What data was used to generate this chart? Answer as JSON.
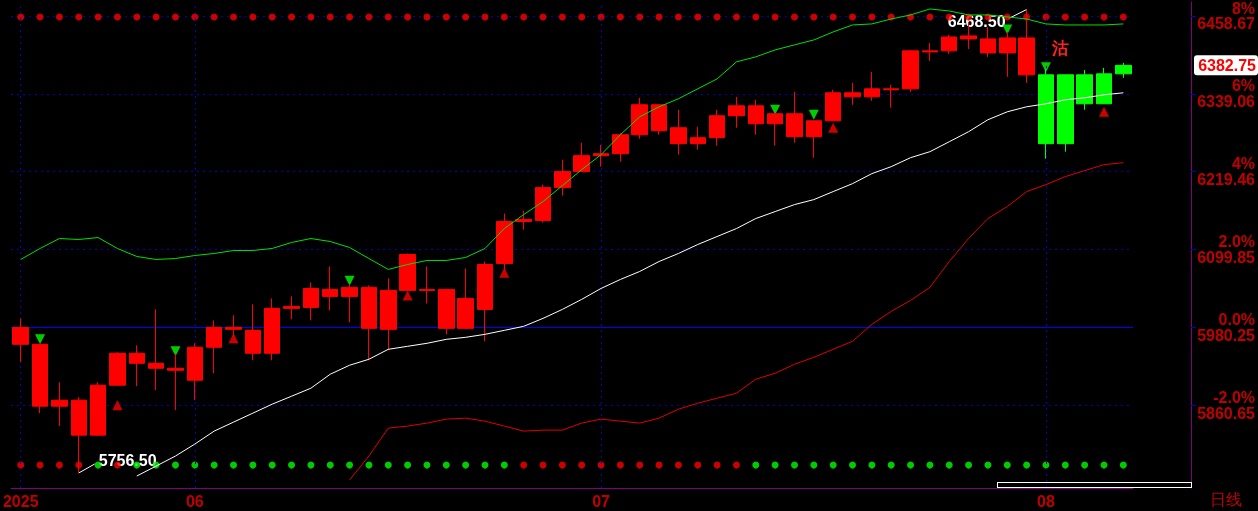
{
  "chart_data": {
    "type": "candlestick",
    "categories": [
      "2025",
      null,
      null,
      null,
      null,
      null,
      null,
      null,
      null,
      "06",
      null,
      null,
      null,
      null,
      null,
      null,
      null,
      null,
      null,
      null,
      null,
      null,
      null,
      null,
      null,
      null,
      null,
      null,
      null,
      null,
      "07",
      null,
      null,
      null,
      null,
      null,
      null,
      null,
      null,
      null,
      null,
      null,
      null,
      null,
      null,
      null,
      null,
      null,
      null,
      null,
      null,
      null,
      null,
      "08",
      null,
      null,
      null,
      null
    ],
    "ohlc": [
      [
        5954.2,
        5994.0,
        5926.6,
        5980.2
      ],
      [
        5859.1,
        5954.2,
        5848.4,
        5954.2
      ],
      [
        5859.1,
        5895.9,
        5828.5,
        5868.3
      ],
      [
        5814.6,
        5872.9,
        5756.5,
        5868.3
      ],
      [
        5814.6,
        5895.9,
        5813.1,
        5891.3
      ],
      [
        5891.3,
        5941.9,
        5891.3,
        5940.4
      ],
      [
        5925.0,
        5952.6,
        5889.8,
        5940.4
      ],
      [
        5917.4,
        6007.8,
        5883.7,
        5925.0
      ],
      [
        5914.3,
        5938.8,
        5853.0,
        5917.4
      ],
      [
        5899.0,
        5955.7,
        5868.3,
        5949.6
      ],
      [
        5949.6,
        5991.0,
        5909.7,
        5980.2
      ],
      [
        5977.2,
        5998.7,
        5966.4,
        5980.2
      ],
      [
        5940.4,
        6015.5,
        5929.6,
        5975.6
      ],
      [
        5940.4,
        6024.7,
        5929.6,
        6009.4
      ],
      [
        6009.4,
        6027.8,
        5992.5,
        6012.4
      ],
      [
        6010.9,
        6049.2,
        5991.0,
        6040.0
      ],
      [
        6027.8,
        6073.8,
        6006.3,
        6038.5
      ],
      [
        6027.8,
        6046.2,
        5987.9,
        6041.6
      ],
      [
        5978.7,
        6044.6,
        5929.6,
        6041.6
      ],
      [
        5977.2,
        6055.4,
        5945.0,
        6037.0
      ],
      [
        6037.0,
        6093.7,
        6037.0,
        6092.2
      ],
      [
        6037.0,
        6073.8,
        6017.0,
        6038.5
      ],
      [
        5978.7,
        6038.5,
        5969.5,
        6038.5
      ],
      [
        5978.7,
        6070.7,
        5978.7,
        6024.7
      ],
      [
        6007.8,
        6081.4,
        5958.8,
        6076.8
      ],
      [
        6078.4,
        6155.0,
        6067.6,
        6142.8
      ],
      [
        6142.8,
        6159.6,
        6130.5,
        6145.8
      ],
      [
        6144.3,
        6199.5,
        6141.2,
        6194.9
      ],
      [
        6194.9,
        6237.8,
        6182.6,
        6219.5
      ],
      [
        6219.5,
        6263.9,
        6219.5,
        6244.0
      ],
      [
        6244.0,
        6260.8,
        6227.1,
        6247.0
      ],
      [
        6247.0,
        6279.2,
        6234.8,
        6276.2
      ],
      [
        6276.2,
        6332.9,
        6270.0,
        6322.2
      ],
      [
        6282.3,
        6322.2,
        6276.2,
        6322.2
      ],
      [
        6262.4,
        6314.5,
        6245.5,
        6286.9
      ],
      [
        6262.4,
        6288.4,
        6253.2,
        6271.6
      ],
      [
        6271.6,
        6314.5,
        6259.3,
        6305.3
      ],
      [
        6305.3,
        6334.4,
        6286.9,
        6320.6
      ],
      [
        6293.0,
        6329.8,
        6276.2,
        6320.6
      ],
      [
        6293.0,
        6308.4,
        6259.3,
        6308.4
      ],
      [
        6273.1,
        6342.1,
        6263.9,
        6308.4
      ],
      [
        6273.1,
        6297.6,
        6240.9,
        6297.6
      ],
      [
        6297.6,
        6345.2,
        6297.6,
        6340.6
      ],
      [
        6334.4,
        6355.9,
        6322.2,
        6340.6
      ],
      [
        6334.4,
        6372.8,
        6328.3,
        6346.7
      ],
      [
        6345.2,
        6352.8,
        6317.6,
        6346.7
      ],
      [
        6346.7,
        6406.5,
        6342.1,
        6405.0
      ],
      [
        6403.4,
        6417.2,
        6389.6,
        6405.0
      ],
      [
        6405.0,
        6429.5,
        6400.4,
        6426.4
      ],
      [
        6423.4,
        6449.4,
        6408.0,
        6428.0
      ],
      [
        6401.9,
        6441.8,
        6395.8,
        6423.4
      ],
      [
        6401.9,
        6434.1,
        6365.1,
        6424.9
      ],
      [
        6368.2,
        6468.5,
        6355.9,
        6424.9
      ],
      [
        6368.2,
        6377.4,
        6239.4,
        6262.4
      ],
      [
        6368.2,
        6368.2,
        6250.1,
        6262.4
      ],
      [
        6368.2,
        6375.8,
        6314.5,
        6323.7
      ],
      [
        6369.7,
        6378.9,
        6323.7,
        6323.7
      ],
      [
        6369.7,
        6386.6,
        6363.6,
        6382.75
      ]
    ],
    "colors": [
      "#ff0000",
      "#ff0000",
      "#ff0000",
      "#ff0000",
      "#ff0000",
      "#ff0000",
      "#ff0000",
      "#ff0000",
      "#ff0000",
      "#ff0000",
      "#ff0000",
      "#ff0000",
      "#ff0000",
      "#ff0000",
      "#ff0000",
      "#ff0000",
      "#ff0000",
      "#ff0000",
      "#ff0000",
      "#ff0000",
      "#ff0000",
      "#ff0000",
      "#ff0000",
      "#ff0000",
      "#ff0000",
      "#ff0000",
      "#ff0000",
      "#ff0000",
      "#ff0000",
      "#ff0000",
      "#ff0000",
      "#ff0000",
      "#ff0000",
      "#ff0000",
      "#ff0000",
      "#ff0000",
      "#ff0000",
      "#ff0000",
      "#ff0000",
      "#ff0000",
      "#ff0000",
      "#ff0000",
      "#ff0000",
      "#ff0000",
      "#ff0000",
      "#ff0000",
      "#ff0000",
      "#ff0000",
      "#ff0000",
      "#ff0000",
      "#ff0000",
      "#ff0000",
      "#ff0000",
      "#00ff00",
      "#00ff00",
      "#00ff00",
      "#00ff00",
      "#00ff00"
    ],
    "series": [
      {
        "type": "line",
        "color": "#00e000",
        "values": [
          6084.5,
          6101.4,
          6116.7,
          6115.2,
          6118.2,
          6101.4,
          6089.1,
          6084.5,
          6086.0,
          6090.6,
          6093.7,
          6098.3,
          6098.3,
          6101.4,
          6110.6,
          6116.7,
          6112.1,
          6102.9,
          6086.0,
          6069.2,
          6076.8,
          6083.0,
          6083.0,
          6087.6,
          6101.4,
          6132.0,
          6153.5,
          6173.4,
          6198.0,
          6222.5,
          6245.5,
          6276.2,
          6303.8,
          6319.1,
          6331.4,
          6346.7,
          6362.0,
          6388.1,
          6395.8,
          6406.5,
          6414.2,
          6421.8,
          6434.1,
          6444.8,
          6446.4,
          6454.0,
          6460.2,
          6469.4,
          6466.3,
          6460.2,
          6460.2,
          6457.1,
          6454.0,
          6446.4,
          6444.8,
          6444.8,
          6444.8,
          6446.4
        ]
      },
      {
        "type": "line",
        "color": "#ffffff",
        "values": [
          null,
          null,
          null,
          null,
          null,
          null,
          5751.8,
          5767.1,
          5782.5,
          5800.9,
          5820.8,
          5834.6,
          5848.4,
          5862.2,
          5874.4,
          5886.7,
          5908.2,
          5922.0,
          5931.2,
          5946.5,
          5951.1,
          5955.7,
          5961.8,
          5964.9,
          5969.5,
          5975.6,
          5981.8,
          5994.0,
          6007.8,
          6023.2,
          6040.0,
          6053.8,
          6066.1,
          6081.4,
          6093.7,
          6107.5,
          6119.8,
          6132.0,
          6147.4,
          6158.1,
          6168.8,
          6176.5,
          6188.8,
          6201.0,
          6216.4,
          6227.1,
          6240.9,
          6250.1,
          6265.4,
          6280.8,
          6299.2,
          6311.4,
          6319.1,
          6323.7,
          6329.8,
          6332.9,
          6337.5,
          6340.6
        ]
      },
      {
        "type": "line",
        "color": "#e00000",
        "values": [
          null,
          null,
          null,
          null,
          null,
          null,
          null,
          null,
          null,
          null,
          null,
          null,
          null,
          null,
          null,
          null,
          null,
          5745.6,
          5782.5,
          5825.4,
          5828.5,
          5833.1,
          5839.2,
          5840.7,
          5836.1,
          5828.5,
          5820.8,
          5822.3,
          5822.3,
          5833.1,
          5839.2,
          5836.1,
          5833.1,
          5840.7,
          5854.5,
          5863.7,
          5871.4,
          5879.0,
          5900.5,
          5909.7,
          5923.5,
          5934.2,
          5946.5,
          5958.8,
          5984.8,
          6004.8,
          6021.6,
          6041.6,
          6081.4,
          6116.7,
          6147.4,
          6165.8,
          6188.8,
          6199.5,
          6211.8,
          6221.0,
          6230.2,
          6233.2
        ]
      },
      {
        "type": "scatter",
        "marker": "circle",
        "color": "#ff0000",
        "values": [
          6457,
          6457,
          6457,
          6457,
          6457,
          6457,
          6457,
          6457,
          6457,
          6457,
          6457,
          6457,
          6457,
          6457,
          6457,
          6457,
          6457,
          6457,
          6457,
          6457,
          6457,
          6457,
          6457,
          6457,
          6457,
          6457,
          6457,
          6457,
          6457,
          6457,
          6457,
          6457,
          6457,
          6457,
          6457,
          6457,
          6457,
          6457,
          6457,
          6457,
          6457,
          6457,
          6457,
          6457,
          6457,
          6457,
          6457,
          6457,
          6457,
          6457,
          6457,
          6457,
          6457,
          6457,
          6457,
          6457,
          6457,
          6457
        ]
      },
      {
        "type": "scatter",
        "marker": "circle",
        "values": [
          5768.6,
          5768.6,
          5768.6,
          5768.6,
          5768.6,
          5768.6,
          5768.6,
          5768.6,
          5768.6,
          5768.6,
          5768.6,
          5768.6,
          5768.6,
          5768.6,
          5768.6,
          5768.6,
          5768.6,
          5768.6,
          5768.6,
          5768.6,
          5768.6,
          5768.6,
          5768.6,
          5768.6,
          5768.6,
          5768.6,
          5768.6,
          5768.6,
          5768.6,
          5768.6,
          5768.6,
          5768.6,
          5768.6,
          5768.6,
          5768.6,
          5768.6,
          5768.6,
          5768.6,
          5768.6,
          5768.6,
          5768.6,
          5768.6,
          5768.6,
          5768.6,
          5768.6,
          5768.6,
          5768.6,
          5768.6,
          5768.6,
          5768.6,
          5768.6,
          5768.6,
          5768.6,
          5768.6,
          5768.6,
          5768.6,
          5768.6,
          5768.6
        ],
        "colors": [
          "#ff0000",
          "#ff0000",
          "#ff0000",
          "#ff0000",
          "#00ff00",
          "#ff0000",
          "#00ff00",
          "#00ff00",
          "#00ff00",
          "#00ff00",
          "#00ff00",
          "#00ff00",
          "#00ff00",
          "#00ff00",
          "#00ff00",
          "#00ff00",
          "#00ff00",
          "#00ff00",
          "#00ff00",
          "#00ff00",
          "#00ff00",
          "#00ff00",
          "#00ff00",
          "#00ff00",
          "#00ff00",
          "#00ff00",
          "#ff0000",
          "#ff0000",
          "#ff0000",
          "#ff0000",
          "#ff0000",
          "#ff0000",
          "#ff0000",
          "#ff0000",
          "#ff0000",
          "#ff0000",
          "#ff0000",
          "#ff0000",
          "#00ff00",
          "#00ff00",
          "#00ff00",
          "#00ff00",
          "#00ff00",
          "#00ff00",
          "#00ff00",
          "#00ff00",
          "#00ff00",
          "#00ff00",
          "#00ff00",
          "#00ff00",
          "#00ff00",
          "#00ff00",
          "#00ff00",
          "#00ff00",
          "#00ff00",
          "#00ff00",
          "#00ff00",
          "#00ff00"
        ]
      },
      {
        "type": "scatter",
        "marker": "triangle",
        "color": "#00ff00",
        "values": [
          null,
          5961.8,
          null,
          null,
          null,
          null,
          null,
          null,
          5943.4,
          null,
          null,
          null,
          null,
          null,
          null,
          null,
          null,
          6052,
          null,
          null,
          null,
          null,
          null,
          null,
          null,
          null,
          null,
          null,
          null,
          null,
          null,
          null,
          null,
          null,
          null,
          null,
          null,
          null,
          null,
          6314.5,
          null,
          6306.8,
          null,
          null,
          null,
          null,
          null,
          null,
          null,
          null,
          null,
          6438,
          null,
          6380,
          null,
          null,
          null,
          null
        ]
      },
      {
        "type": "scatter",
        "marker": "triangle",
        "color": "#ff0000",
        "values": [
          null,
          null,
          null,
          null,
          null,
          5860.6,
          null,
          null,
          null,
          null,
          null,
          5963.4,
          null,
          null,
          null,
          null,
          null,
          null,
          null,
          null,
          6029.3,
          null,
          null,
          null,
          null,
          6064,
          null,
          null,
          null,
          null,
          null,
          null,
          null,
          null,
          null,
          null,
          null,
          null,
          null,
          null,
          null,
          null,
          6286.9,
          null,
          null,
          null,
          null,
          null,
          null,
          null,
          null,
          null,
          null,
          null,
          null,
          null,
          6311.4,
          null
        ]
      }
    ],
    "ylim": [
      5733.4,
      6480.1
    ],
    "yticks": [
      5860.65,
      5980.25,
      6099.85,
      6219.46,
      6339.06,
      6458.67
    ],
    "y2lim": [
      -4.13,
      8.36
    ],
    "y2ticks": [
      {
        "value": -2,
        "label": "-2.0%"
      },
      {
        "value": 0,
        "label": "0.0%"
      },
      {
        "value": 2,
        "label": "2.0%"
      },
      {
        "value": 4,
        "label": "4%"
      },
      {
        "value": 6,
        "label": "6%"
      },
      {
        "value": 8,
        "label": "8%"
      }
    ],
    "ref_lines": [
      {
        "axis": "y2",
        "value": 0,
        "color": "#0000ff"
      }
    ],
    "annotations": [
      "6468.50",
      "5756.50",
      "6382.75",
      "沽",
      "日线"
    ],
    "grid": true
  }
}
